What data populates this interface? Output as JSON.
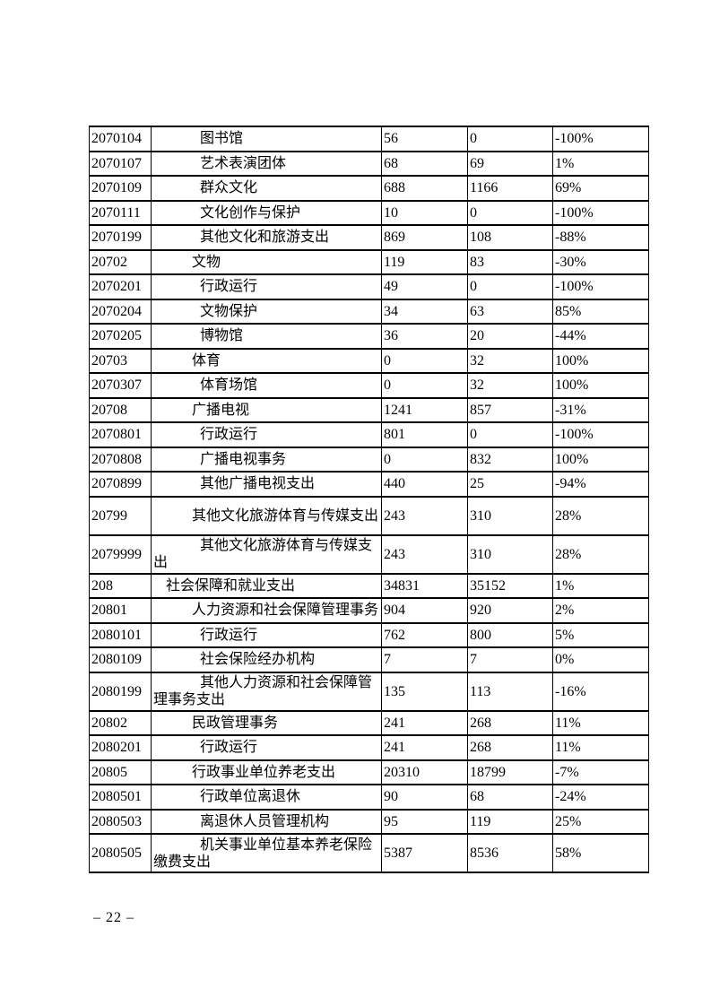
{
  "page": {
    "number_label": "– 22 –"
  },
  "table": {
    "rows": [
      {
        "code": "2070104",
        "name": "图书馆",
        "level": 3,
        "tall": false,
        "v1": "56",
        "v2": "0",
        "pct": "-100%"
      },
      {
        "code": "2070107",
        "name": "艺术表演团体",
        "level": 3,
        "tall": false,
        "v1": "68",
        "v2": "69",
        "pct": "1%"
      },
      {
        "code": "2070109",
        "name": "群众文化",
        "level": 3,
        "tall": false,
        "v1": "688",
        "v2": "1166",
        "pct": "69%"
      },
      {
        "code": "2070111",
        "name": "文化创作与保护",
        "level": 3,
        "tall": false,
        "v1": "10",
        "v2": "0",
        "pct": "-100%"
      },
      {
        "code": "2070199",
        "name": "其他文化和旅游支出",
        "level": 3,
        "tall": false,
        "v1": "869",
        "v2": "108",
        "pct": "-88%"
      },
      {
        "code": "20702",
        "name": "文物",
        "level": 2,
        "tall": false,
        "v1": "119",
        "v2": "83",
        "pct": "-30%"
      },
      {
        "code": "2070201",
        "name": "行政运行",
        "level": 3,
        "tall": false,
        "v1": "49",
        "v2": "0",
        "pct": "-100%"
      },
      {
        "code": "2070204",
        "name": "文物保护",
        "level": 3,
        "tall": false,
        "v1": "34",
        "v2": "63",
        "pct": "85%"
      },
      {
        "code": "2070205",
        "name": "博物馆",
        "level": 3,
        "tall": false,
        "v1": "36",
        "v2": "20",
        "pct": "-44%"
      },
      {
        "code": "20703",
        "name": "体育",
        "level": 2,
        "tall": false,
        "v1": "0",
        "v2": "32",
        "pct": "100%"
      },
      {
        "code": "2070307",
        "name": "体育场馆",
        "level": 3,
        "tall": false,
        "v1": "0",
        "v2": "32",
        "pct": "100%"
      },
      {
        "code": "20708",
        "name": "广播电视",
        "level": 2,
        "tall": false,
        "v1": "1241",
        "v2": "857",
        "pct": "-31%"
      },
      {
        "code": "2070801",
        "name": "行政运行",
        "level": 3,
        "tall": false,
        "v1": "801",
        "v2": "0",
        "pct": "-100%"
      },
      {
        "code": "2070808",
        "name": "广播电视事务",
        "level": 3,
        "tall": false,
        "v1": "0",
        "v2": "832",
        "pct": "100%"
      },
      {
        "code": "2070899",
        "name": "其他广播电视支出",
        "level": 3,
        "tall": false,
        "v1": "440",
        "v2": "25",
        "pct": "-94%"
      },
      {
        "code": "20799",
        "name": "其他文化旅游体育与传媒支出",
        "level": 2,
        "tall": true,
        "v1": "243",
        "v2": "310",
        "pct": "28%"
      },
      {
        "code": "2079999",
        "name": "其他文化旅游体育与传媒支出",
        "level": 3,
        "tall": true,
        "v1": "243",
        "v2": "310",
        "pct": "28%"
      },
      {
        "code": "208",
        "name": "社会保障和就业支出",
        "level": 1,
        "tall": false,
        "v1": "34831",
        "v2": "35152",
        "pct": "1%"
      },
      {
        "code": "20801",
        "name": "人力资源和社会保障管理事务",
        "level": 2,
        "tall": false,
        "v1": "904",
        "v2": "920",
        "pct": "2%"
      },
      {
        "code": "2080101",
        "name": "行政运行",
        "level": 3,
        "tall": false,
        "v1": "762",
        "v2": "800",
        "pct": "5%"
      },
      {
        "code": "2080109",
        "name": "社会保险经办机构",
        "level": 3,
        "tall": false,
        "v1": "7",
        "v2": "7",
        "pct": "0%"
      },
      {
        "code": "2080199",
        "name": "其他人力资源和社会保障管理事务支出",
        "level": 3,
        "tall": true,
        "v1": "135",
        "v2": "113",
        "pct": "-16%"
      },
      {
        "code": "20802",
        "name": "民政管理事务",
        "level": 2,
        "tall": false,
        "v1": "241",
        "v2": "268",
        "pct": "11%"
      },
      {
        "code": "2080201",
        "name": "行政运行",
        "level": 3,
        "tall": false,
        "v1": "241",
        "v2": "268",
        "pct": "11%"
      },
      {
        "code": "20805",
        "name": "行政事业单位养老支出",
        "level": 2,
        "tall": false,
        "v1": "20310",
        "v2": "18799",
        "pct": "-7%"
      },
      {
        "code": "2080501",
        "name": "行政单位离退休",
        "level": 3,
        "tall": false,
        "v1": "90",
        "v2": "68",
        "pct": "-24%"
      },
      {
        "code": "2080503",
        "name": "离退休人员管理机构",
        "level": 3,
        "tall": false,
        "v1": "95",
        "v2": "119",
        "pct": "25%"
      },
      {
        "code": "2080505",
        "name": "机关事业单位基本养老保险缴费支出",
        "level": 3,
        "tall": true,
        "v1": "5387",
        "v2": "8536",
        "pct": "58%"
      }
    ]
  }
}
